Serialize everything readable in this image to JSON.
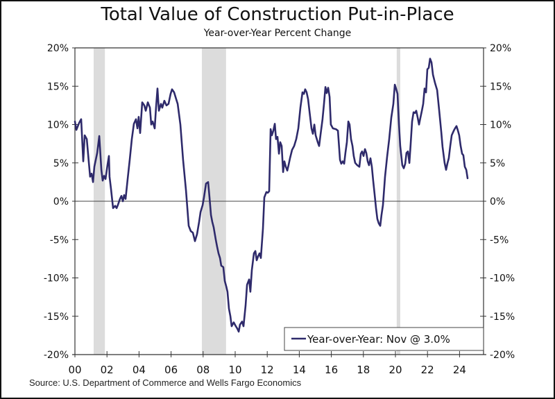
{
  "chart_data": {
    "type": "line",
    "title": "Total Value of Construction Put-in-Place",
    "subtitle": "Year-over-Year Percent Change",
    "source": "Source: U.S. Department of Commerce and Wells Fargo Economics",
    "xlabel": "",
    "ylabel": "",
    "xlim": [
      2000,
      2025.5
    ],
    "ylim": [
      -20,
      20
    ],
    "x_ticks": [
      2000,
      2002,
      2004,
      2006,
      2008,
      2010,
      2012,
      2014,
      2016,
      2018,
      2020,
      2022,
      2024
    ],
    "x_tick_labels": [
      "00",
      "02",
      "04",
      "06",
      "08",
      "10",
      "12",
      "14",
      "16",
      "18",
      "20",
      "22",
      "24"
    ],
    "y_ticks": [
      20,
      15,
      10,
      5,
      0,
      -5,
      -10,
      -15,
      -20
    ],
    "y_tick_labels": [
      "20%",
      "15%",
      "10%",
      "5%",
      "0%",
      "-5%",
      "-10%",
      "-15%",
      "-20%"
    ],
    "y_axis_both_sides": true,
    "grid": false,
    "zero_line": true,
    "recessions": [
      [
        2001.17,
        2001.87
      ],
      [
        2007.92,
        2009.43
      ],
      [
        2020.08,
        2020.3
      ]
    ],
    "legend": {
      "placement": "bottom-right",
      "entries": [
        "Year-over-Year: Nov @ 3.0%"
      ]
    },
    "series": [
      {
        "name": "Year-over-Year",
        "color": "#2e2a6b",
        "points": [
          [
            2000.0,
            10.4
          ],
          [
            2000.09,
            9.3
          ],
          [
            2000.26,
            10.2
          ],
          [
            2000.39,
            10.7
          ],
          [
            2000.52,
            5.2
          ],
          [
            2000.61,
            8.6
          ],
          [
            2000.74,
            8.1
          ],
          [
            2000.87,
            5.0
          ],
          [
            2000.95,
            3.2
          ],
          [
            2001.04,
            3.6
          ],
          [
            2001.13,
            2.5
          ],
          [
            2001.21,
            4.5
          ],
          [
            2001.39,
            6.3
          ],
          [
            2001.52,
            8.5
          ],
          [
            2001.65,
            4.1
          ],
          [
            2001.73,
            2.7
          ],
          [
            2001.82,
            3.3
          ],
          [
            2001.91,
            2.9
          ],
          [
            2002.03,
            4.7
          ],
          [
            2002.12,
            5.9
          ],
          [
            2002.16,
            3.2
          ],
          [
            2002.25,
            1.6
          ],
          [
            2002.38,
            -0.9
          ],
          [
            2002.51,
            -0.6
          ],
          [
            2002.6,
            -0.9
          ],
          [
            2002.68,
            -0.5
          ],
          [
            2002.81,
            0.3
          ],
          [
            2002.9,
            0.7
          ],
          [
            2002.99,
            0.0
          ],
          [
            2003.07,
            0.8
          ],
          [
            2003.16,
            0.3
          ],
          [
            2003.29,
            2.9
          ],
          [
            2003.42,
            5.4
          ],
          [
            2003.55,
            8.1
          ],
          [
            2003.68,
            10.1
          ],
          [
            2003.81,
            10.7
          ],
          [
            2003.9,
            9.5
          ],
          [
            2003.98,
            11.0
          ],
          [
            2004.07,
            8.9
          ],
          [
            2004.2,
            12.9
          ],
          [
            2004.33,
            12.5
          ],
          [
            2004.42,
            11.8
          ],
          [
            2004.55,
            12.9
          ],
          [
            2004.68,
            12.2
          ],
          [
            2004.76,
            10.0
          ],
          [
            2004.85,
            10.4
          ],
          [
            2004.98,
            9.5
          ],
          [
            2005.06,
            12.2
          ],
          [
            2005.15,
            14.7
          ],
          [
            2005.24,
            11.8
          ],
          [
            2005.37,
            12.7
          ],
          [
            2005.45,
            12.2
          ],
          [
            2005.58,
            13.1
          ],
          [
            2005.71,
            12.5
          ],
          [
            2005.84,
            12.7
          ],
          [
            2005.97,
            14.0
          ],
          [
            2006.06,
            14.6
          ],
          [
            2006.19,
            14.2
          ],
          [
            2006.32,
            13.3
          ],
          [
            2006.41,
            12.7
          ],
          [
            2006.58,
            10.0
          ],
          [
            2006.75,
            5.4
          ],
          [
            2006.93,
            1.4
          ],
          [
            2007.1,
            -3.2
          ],
          [
            2007.23,
            -3.9
          ],
          [
            2007.36,
            -4.1
          ],
          [
            2007.49,
            -5.2
          ],
          [
            2007.62,
            -4.3
          ],
          [
            2007.75,
            -2.7
          ],
          [
            2007.84,
            -1.4
          ],
          [
            2007.97,
            -0.5
          ],
          [
            2008.05,
            0.5
          ],
          [
            2008.18,
            2.3
          ],
          [
            2008.31,
            2.5
          ],
          [
            2008.4,
            0.5
          ],
          [
            2008.49,
            -1.8
          ],
          [
            2008.57,
            -2.7
          ],
          [
            2008.66,
            -3.4
          ],
          [
            2008.79,
            -5.0
          ],
          [
            2008.87,
            -5.9
          ],
          [
            2008.96,
            -6.8
          ],
          [
            2009.05,
            -7.4
          ],
          [
            2009.13,
            -8.4
          ],
          [
            2009.26,
            -8.6
          ],
          [
            2009.35,
            -10.4
          ],
          [
            2009.44,
            -11.1
          ],
          [
            2009.52,
            -11.8
          ],
          [
            2009.61,
            -14.0
          ],
          [
            2009.7,
            -15.0
          ],
          [
            2009.78,
            -16.3
          ],
          [
            2009.91,
            -15.8
          ],
          [
            2010.04,
            -16.3
          ],
          [
            2010.13,
            -16.6
          ],
          [
            2010.22,
            -17.0
          ],
          [
            2010.3,
            -16.1
          ],
          [
            2010.43,
            -15.7
          ],
          [
            2010.52,
            -16.3
          ],
          [
            2010.65,
            -13.6
          ],
          [
            2010.74,
            -10.9
          ],
          [
            2010.87,
            -10.2
          ],
          [
            2010.95,
            -11.8
          ],
          [
            2011.04,
            -9.0
          ],
          [
            2011.17,
            -6.8
          ],
          [
            2011.26,
            -6.5
          ],
          [
            2011.34,
            -7.7
          ],
          [
            2011.43,
            -7.2
          ],
          [
            2011.52,
            -6.8
          ],
          [
            2011.6,
            -7.4
          ],
          [
            2011.73,
            -3.6
          ],
          [
            2011.82,
            0.5
          ],
          [
            2011.95,
            1.2
          ],
          [
            2012.03,
            1.1
          ],
          [
            2012.12,
            1.3
          ],
          [
            2012.21,
            9.4
          ],
          [
            2012.29,
            8.6
          ],
          [
            2012.38,
            9.2
          ],
          [
            2012.47,
            10.1
          ],
          [
            2012.55,
            8.1
          ],
          [
            2012.64,
            8.4
          ],
          [
            2012.73,
            6.2
          ],
          [
            2012.81,
            7.7
          ],
          [
            2012.9,
            7.2
          ],
          [
            2012.99,
            3.8
          ],
          [
            2013.07,
            5.2
          ],
          [
            2013.16,
            4.5
          ],
          [
            2013.25,
            4.0
          ],
          [
            2013.33,
            4.7
          ],
          [
            2013.42,
            5.6
          ],
          [
            2013.55,
            6.7
          ],
          [
            2013.68,
            7.2
          ],
          [
            2013.81,
            8.1
          ],
          [
            2013.94,
            9.5
          ],
          [
            2014.07,
            12.2
          ],
          [
            2014.2,
            14.2
          ],
          [
            2014.29,
            14.0
          ],
          [
            2014.37,
            14.6
          ],
          [
            2014.46,
            14.2
          ],
          [
            2014.55,
            13.3
          ],
          [
            2014.63,
            11.8
          ],
          [
            2014.76,
            9.5
          ],
          [
            2014.85,
            8.8
          ],
          [
            2014.94,
            10.0
          ],
          [
            2015.02,
            8.6
          ],
          [
            2015.15,
            7.7
          ],
          [
            2015.24,
            7.2
          ],
          [
            2015.32,
            8.6
          ],
          [
            2015.45,
            10.7
          ],
          [
            2015.54,
            12.7
          ],
          [
            2015.63,
            14.9
          ],
          [
            2015.71,
            14.1
          ],
          [
            2015.8,
            14.8
          ],
          [
            2015.89,
            13.6
          ],
          [
            2015.97,
            10.0
          ],
          [
            2016.1,
            9.5
          ],
          [
            2016.28,
            9.4
          ],
          [
            2016.41,
            9.2
          ],
          [
            2016.54,
            5.4
          ],
          [
            2016.62,
            4.9
          ],
          [
            2016.71,
            5.2
          ],
          [
            2016.8,
            4.9
          ],
          [
            2016.88,
            6.3
          ],
          [
            2016.97,
            7.7
          ],
          [
            2017.06,
            10.4
          ],
          [
            2017.14,
            10.0
          ],
          [
            2017.23,
            8.1
          ],
          [
            2017.32,
            7.2
          ],
          [
            2017.4,
            5.9
          ],
          [
            2017.49,
            5.0
          ],
          [
            2017.62,
            4.7
          ],
          [
            2017.75,
            4.5
          ],
          [
            2017.84,
            6.2
          ],
          [
            2017.92,
            6.5
          ],
          [
            2018.01,
            5.9
          ],
          [
            2018.1,
            6.8
          ],
          [
            2018.18,
            6.3
          ],
          [
            2018.27,
            5.2
          ],
          [
            2018.35,
            4.7
          ],
          [
            2018.44,
            5.6
          ],
          [
            2018.53,
            4.5
          ],
          [
            2018.61,
            2.7
          ],
          [
            2018.7,
            0.9
          ],
          [
            2018.79,
            -0.9
          ],
          [
            2018.87,
            -2.3
          ],
          [
            2018.96,
            -2.9
          ],
          [
            2019.05,
            -3.2
          ],
          [
            2019.13,
            -1.8
          ],
          [
            2019.22,
            -0.5
          ],
          [
            2019.35,
            3.2
          ],
          [
            2019.48,
            5.8
          ],
          [
            2019.61,
            8.1
          ],
          [
            2019.74,
            10.9
          ],
          [
            2019.87,
            12.7
          ],
          [
            2019.96,
            15.2
          ],
          [
            2020.04,
            14.7
          ],
          [
            2020.13,
            14.0
          ],
          [
            2020.22,
            10.0
          ],
          [
            2020.3,
            7.2
          ],
          [
            2020.43,
            4.7
          ],
          [
            2020.52,
            4.3
          ],
          [
            2020.61,
            4.9
          ],
          [
            2020.69,
            6.3
          ],
          [
            2020.78,
            6.5
          ],
          [
            2020.87,
            5.0
          ],
          [
            2020.95,
            7.4
          ],
          [
            2021.04,
            10.4
          ],
          [
            2021.13,
            11.6
          ],
          [
            2021.21,
            11.5
          ],
          [
            2021.3,
            11.8
          ],
          [
            2021.39,
            10.9
          ],
          [
            2021.47,
            10.0
          ],
          [
            2021.56,
            10.9
          ],
          [
            2021.65,
            11.8
          ],
          [
            2021.73,
            12.7
          ],
          [
            2021.82,
            14.7
          ],
          [
            2021.91,
            14.2
          ],
          [
            2021.99,
            17.2
          ],
          [
            2022.08,
            17.4
          ],
          [
            2022.16,
            18.6
          ],
          [
            2022.25,
            18.1
          ],
          [
            2022.34,
            16.5
          ],
          [
            2022.47,
            15.4
          ],
          [
            2022.6,
            14.5
          ],
          [
            2022.73,
            11.8
          ],
          [
            2022.86,
            9.0
          ],
          [
            2022.94,
            7.1
          ],
          [
            2023.07,
            5.0
          ],
          [
            2023.16,
            4.1
          ],
          [
            2023.25,
            5.0
          ],
          [
            2023.33,
            5.6
          ],
          [
            2023.42,
            7.2
          ],
          [
            2023.51,
            8.6
          ],
          [
            2023.64,
            9.2
          ],
          [
            2023.72,
            9.5
          ],
          [
            2023.81,
            9.8
          ],
          [
            2023.9,
            9.2
          ],
          [
            2023.98,
            8.6
          ],
          [
            2024.07,
            7.2
          ],
          [
            2024.16,
            6.2
          ],
          [
            2024.24,
            6.0
          ],
          [
            2024.33,
            4.5
          ],
          [
            2024.42,
            4.1
          ],
          [
            2024.5,
            3.0
          ]
        ]
      }
    ]
  }
}
